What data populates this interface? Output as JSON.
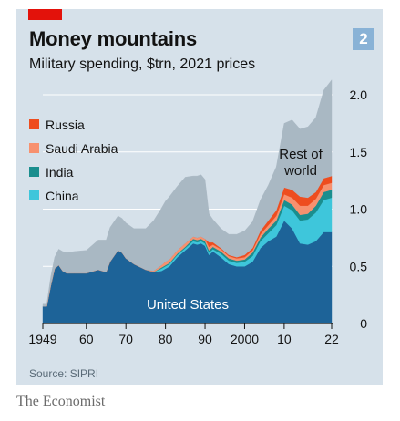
{
  "figure": {
    "badge": "2",
    "source": "Source: SIPRI",
    "brand": "The Economist"
  },
  "chart_data": {
    "type": "area",
    "stacked": true,
    "title": "Money mountains",
    "subtitle": "Military spending, $trn, 2021 prices",
    "x_ticks": [
      "1949",
      "60",
      "70",
      "80",
      "90",
      "2000",
      "10",
      "22"
    ],
    "y_ticks": [
      "0",
      "0.5",
      "1.0",
      "1.5",
      "2.0"
    ],
    "ylim": [
      0,
      2.0
    ],
    "xlim": [
      1949,
      2022
    ],
    "grid": true,
    "legend_position": "top-left",
    "series_order_bottom_to_top": [
      "United States",
      "China",
      "India",
      "Saudi Arabia",
      "Russia",
      "Rest of world"
    ],
    "x": [
      1949,
      1950,
      1951,
      1952,
      1953,
      1954,
      1955,
      1957,
      1960,
      1963,
      1965,
      1966,
      1968,
      1969,
      1970,
      1972,
      1975,
      1977,
      1979,
      1980,
      1981,
      1983,
      1985,
      1987,
      1988,
      1989,
      1990,
      1991,
      1992,
      1994,
      1996,
      1998,
      2000,
      2002,
      2004,
      2006,
      2008,
      2010,
      2012,
      2014,
      2016,
      2018,
      2020,
      2022
    ],
    "series": [
      {
        "name": "United States",
        "color": "#1d6398",
        "values": [
          0.15,
          0.15,
          0.33,
          0.48,
          0.51,
          0.46,
          0.44,
          0.44,
          0.44,
          0.47,
          0.45,
          0.54,
          0.64,
          0.62,
          0.57,
          0.52,
          0.47,
          0.45,
          0.46,
          0.48,
          0.5,
          0.58,
          0.64,
          0.7,
          0.69,
          0.7,
          0.68,
          0.6,
          0.63,
          0.58,
          0.52,
          0.5,
          0.5,
          0.54,
          0.66,
          0.72,
          0.76,
          0.9,
          0.83,
          0.7,
          0.69,
          0.72,
          0.8,
          0.8
        ]
      },
      {
        "name": "China",
        "color": "#3ec6db",
        "values": [
          0,
          0,
          0,
          0,
          0,
          0,
          0,
          0,
          0,
          0,
          0,
          0,
          0,
          0,
          0,
          0,
          0,
          0,
          0.02,
          0.02,
          0.02,
          0.02,
          0.02,
          0.02,
          0.02,
          0.02,
          0.02,
          0.02,
          0.02,
          0.03,
          0.03,
          0.03,
          0.04,
          0.05,
          0.06,
          0.07,
          0.1,
          0.13,
          0.16,
          0.2,
          0.22,
          0.25,
          0.28,
          0.3
        ]
      },
      {
        "name": "India",
        "color": "#1a8e8e",
        "values": [
          0,
          0,
          0,
          0,
          0,
          0,
          0,
          0,
          0,
          0,
          0,
          0,
          0,
          0,
          0,
          0,
          0,
          0,
          0.01,
          0.01,
          0.01,
          0.01,
          0.01,
          0.02,
          0.02,
          0.02,
          0.02,
          0.02,
          0.02,
          0.02,
          0.02,
          0.02,
          0.02,
          0.03,
          0.03,
          0.04,
          0.04,
          0.05,
          0.05,
          0.05,
          0.05,
          0.06,
          0.07,
          0.07
        ]
      },
      {
        "name": "Saudi Arabia",
        "color": "#f7916f",
        "values": [
          0,
          0,
          0,
          0,
          0,
          0,
          0,
          0,
          0,
          0,
          0,
          0,
          0,
          0,
          0,
          0,
          0,
          0.01,
          0.02,
          0.03,
          0.03,
          0.03,
          0.03,
          0.02,
          0.02,
          0.02,
          0.02,
          0.03,
          0.02,
          0.02,
          0.02,
          0.02,
          0.02,
          0.02,
          0.03,
          0.03,
          0.04,
          0.05,
          0.06,
          0.08,
          0.07,
          0.06,
          0.06,
          0.06
        ]
      },
      {
        "name": "Russia",
        "color": "#ee4d1f",
        "values": [
          0,
          0,
          0,
          0,
          0,
          0,
          0,
          0,
          0,
          0,
          0,
          0,
          0,
          0,
          0,
          0,
          0,
          0,
          0,
          0,
          0,
          0,
          0,
          0,
          0,
          0,
          0,
          0.04,
          0.02,
          0.01,
          0.01,
          0.01,
          0.02,
          0.02,
          0.03,
          0.04,
          0.05,
          0.06,
          0.07,
          0.08,
          0.07,
          0.06,
          0.06,
          0.06
        ]
      },
      {
        "name": "Rest of world",
        "color": "#a9b8c3",
        "values": [
          0.02,
          0.02,
          0.08,
          0.1,
          0.14,
          0.17,
          0.18,
          0.19,
          0.2,
          0.26,
          0.28,
          0.3,
          0.3,
          0.3,
          0.31,
          0.31,
          0.36,
          0.44,
          0.5,
          0.53,
          0.55,
          0.56,
          0.58,
          0.53,
          0.54,
          0.54,
          0.52,
          0.25,
          0.2,
          0.17,
          0.18,
          0.2,
          0.21,
          0.23,
          0.27,
          0.31,
          0.38,
          0.56,
          0.61,
          0.59,
          0.62,
          0.65,
          0.77,
          0.84
        ]
      }
    ],
    "legend": [
      "Russia",
      "Saudi Arabia",
      "India",
      "China"
    ],
    "annotations": [
      {
        "text": "Rest of",
        "series": "Rest of world"
      },
      {
        "text": "world",
        "series": "Rest of world"
      },
      {
        "text": "United States",
        "series": "United States"
      }
    ]
  }
}
